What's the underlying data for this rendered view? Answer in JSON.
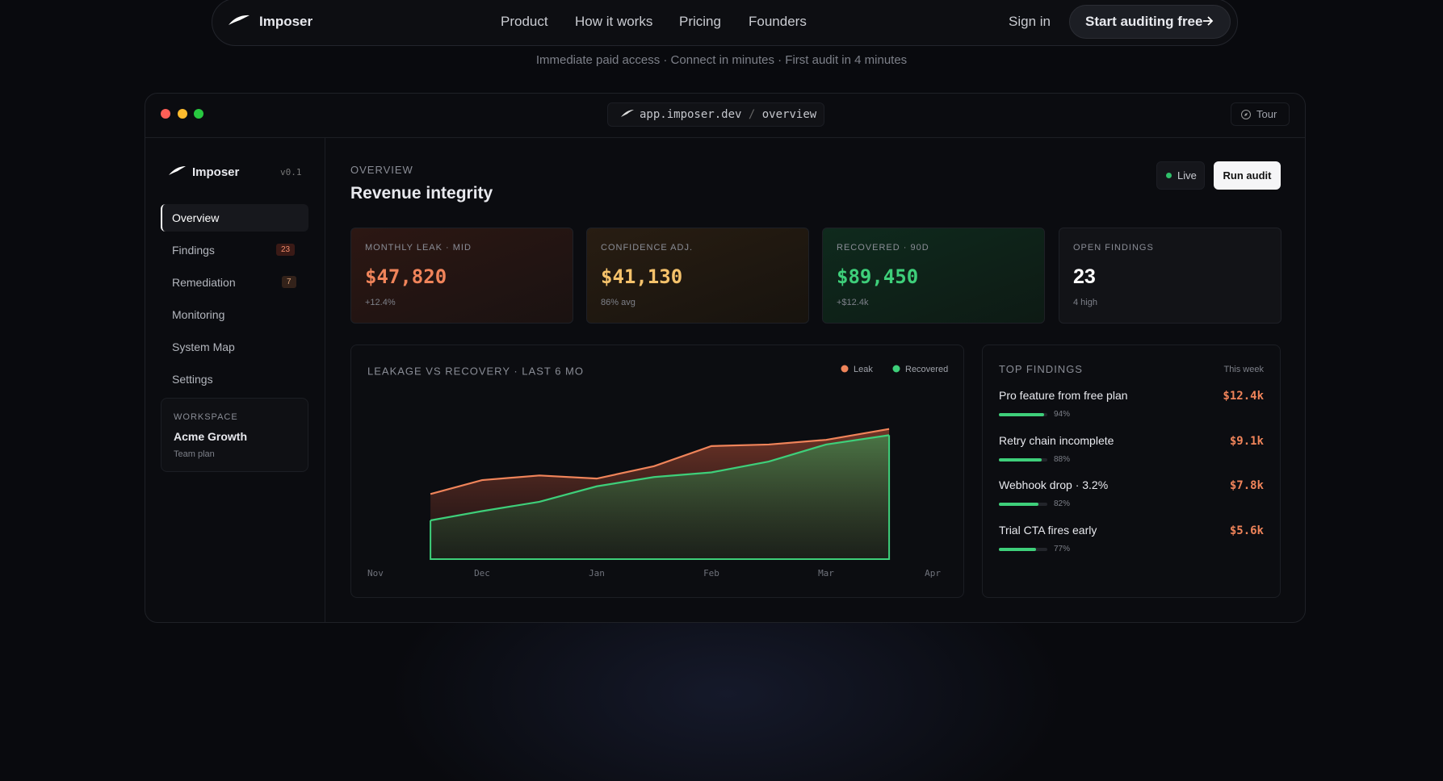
{
  "nav": {
    "brand": "Imposer",
    "links": [
      "Product",
      "How it works",
      "Pricing",
      "Founders"
    ],
    "sign_in": "Sign in",
    "cta": "Start auditing free"
  },
  "tagline": "Immediate paid access · Connect in minutes · First audit in 4 minutes",
  "window": {
    "url_host": "app.imposer.dev",
    "url_sep": "/",
    "url_path": "overview",
    "tour": "Tour"
  },
  "sidebar": {
    "brand": "Imposer",
    "version": "v0.1",
    "items": [
      {
        "label": "Overview"
      },
      {
        "label": "Findings",
        "badge": "23"
      },
      {
        "label": "Remediation",
        "badge": "7"
      },
      {
        "label": "Monitoring"
      },
      {
        "label": "System Map"
      },
      {
        "label": "Settings"
      }
    ],
    "workspace": {
      "label": "WORKSPACE",
      "name": "Acme Growth",
      "plan": "Team plan"
    }
  },
  "header": {
    "eyebrow": "OVERVIEW",
    "title": "Revenue integrity",
    "live": "Live",
    "run": "Run audit"
  },
  "kpis": [
    {
      "label": "MONTHLY LEAK · MID",
      "value": "$47,820",
      "sub": "+12.4%"
    },
    {
      "label": "CONFIDENCE ADJ.",
      "value": "$41,130",
      "sub": "86% avg"
    },
    {
      "label": "RECOVERED · 90D",
      "value": "$89,450",
      "sub": "+$12.4k"
    },
    {
      "label": "OPEN FINDINGS",
      "value": "23",
      "sub": "4 high"
    }
  ],
  "chart_data": {
    "type": "area",
    "title": "LEAKAGE VS RECOVERY · LAST 6 MO",
    "x": [
      0.55,
      1,
      1.5,
      2,
      2.5,
      3,
      3.5,
      4,
      4.55
    ],
    "xlim": [
      0,
      5
    ],
    "xticks": [
      {
        "value": 0,
        "label": "Nov"
      },
      {
        "value": 1,
        "label": "Dec"
      },
      {
        "value": 2,
        "label": "Jan"
      },
      {
        "value": 3,
        "label": "Feb"
      },
      {
        "value": 4,
        "label": "Mar"
      },
      {
        "value": 5,
        "label": "Apr"
      }
    ],
    "ylim": [
      0,
      100
    ],
    "series": [
      {
        "name": "Leak",
        "color": "#f0845a",
        "values": [
          42,
          51,
          54,
          52,
          60,
          73,
          74,
          77,
          84
        ]
      },
      {
        "name": "Recovered",
        "color": "#3ecf7a",
        "values": [
          25,
          31,
          37,
          47,
          53,
          56,
          63,
          74,
          80
        ]
      }
    ]
  },
  "findings": {
    "title": "TOP FINDINGS",
    "period": "This week",
    "items": [
      {
        "name": "Pro feature from free plan",
        "amount": "$12.4k",
        "confidence": {
          "value": 94,
          "label": "94%"
        }
      },
      {
        "name": "Retry chain incomplete",
        "amount": "$9.1k",
        "confidence": {
          "value": 88,
          "label": "88%"
        }
      },
      {
        "name": "Webhook drop · 3.2%",
        "amount": "$7.8k",
        "confidence": {
          "value": 82,
          "label": "82%"
        }
      },
      {
        "name": "Trial CTA fires early",
        "amount": "$5.6k",
        "confidence": {
          "value": 77,
          "label": "77%"
        }
      }
    ]
  }
}
